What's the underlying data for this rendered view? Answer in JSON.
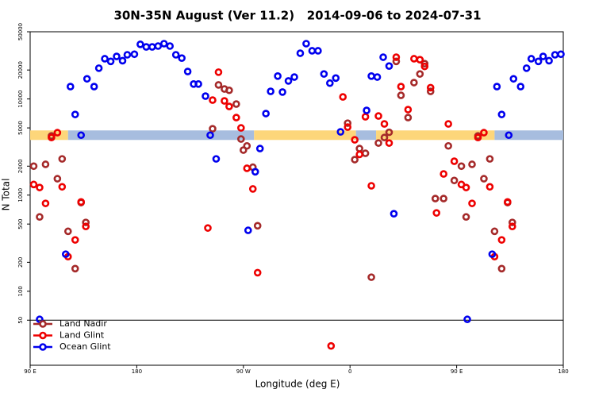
{
  "chart_data": {
    "type": "scatter",
    "title": "30N-35N August (Ver 11.2)   2014-09-06 to 2024-07-31",
    "x_label": "Longitude (deg E)",
    "y_label": "N Total",
    "log_y": true,
    "xlim": [
      90,
      540
    ],
    "ylim": [
      17,
      50000
    ],
    "xticks": [
      {
        "value": 90,
        "label": "90 E"
      },
      {
        "value": 180,
        "label": "180"
      },
      {
        "value": 270,
        "label": "90 W"
      },
      {
        "value": 360,
        "label": "0"
      },
      {
        "value": 450,
        "label": "90 E"
      },
      {
        "value": 540,
        "label": "180"
      }
    ],
    "yticks": [
      50,
      100,
      200,
      500,
      1000,
      2000,
      5000,
      10000,
      20000,
      50000
    ],
    "hline": 50,
    "legend": "lower left",
    "band": {
      "value": 4200,
      "segments": [
        {
          "range": [
            90,
            122
          ],
          "color": "#fdd67a"
        },
        {
          "range": [
            122,
            279
          ],
          "color": "#a7bddf"
        },
        {
          "range": [
            279,
            365
          ],
          "color": "#fdd67a"
        },
        {
          "range": [
            365,
            382
          ],
          "color": "#a7bddf"
        },
        {
          "range": [
            382,
            482
          ],
          "color": "#fdd67a"
        },
        {
          "range": [
            482,
            540
          ],
          "color": "#a7bddf"
        }
      ]
    },
    "series": [
      {
        "name": "Land Nadir",
        "color": "#a52a2a",
        "x": [
          93,
          98,
          103,
          108,
          113,
          117,
          122,
          128,
          133,
          137,
          244,
          249,
          254,
          258,
          264,
          268,
          270,
          273,
          278,
          282,
          358,
          364,
          368,
          373,
          378,
          384,
          389,
          393,
          399,
          403,
          409,
          414,
          419,
          423,
          428,
          432,
          439,
          443,
          448,
          454,
          458,
          463,
          468,
          473,
          478,
          482,
          488,
          493,
          497
        ],
        "values": [
          2000,
          593,
          2090,
          4130,
          1480,
          2380,
          420,
          172,
          836,
          520,
          4900,
          14000,
          12700,
          12300,
          8850,
          3830,
          2940,
          3250,
          1950,
          480,
          5600,
          2340,
          3050,
          2720,
          140,
          3480,
          3970,
          4500,
          24600,
          10900,
          6400,
          14800,
          18200,
          23300,
          12000,
          920,
          920,
          3250,
          1420,
          2000,
          593,
          2090,
          4130,
          1480,
          2380,
          420,
          172,
          836,
          520
        ]
      },
      {
        "name": "Land Glint",
        "color": "#ee0000",
        "x": [
          93,
          98,
          103,
          108,
          113,
          117,
          122,
          128,
          133,
          137,
          240,
          244,
          249,
          254,
          258,
          264,
          268,
          273,
          278,
          282,
          344,
          354,
          358,
          364,
          368,
          373,
          378,
          384,
          389,
          393,
          399,
          403,
          409,
          414,
          419,
          423,
          428,
          433,
          439,
          443,
          448,
          454,
          458,
          463,
          468,
          473,
          478,
          482,
          488,
          493,
          497
        ],
        "values": [
          1290,
          1200,
          820,
          3970,
          4460,
          1220,
          229,
          342,
          850,
          472,
          455,
          9730,
          19000,
          9550,
          8360,
          6400,
          5000,
          1900,
          1160,
          156,
          27,
          10500,
          5100,
          3760,
          2650,
          6530,
          1250,
          6650,
          5500,
          3480,
          27200,
          13450,
          7750,
          26200,
          25600,
          21800,
          13100,
          653,
          1660,
          5500,
          2250,
          1290,
          1200,
          820,
          3970,
          4460,
          1220,
          229,
          342,
          850,
          472
        ]
      },
      {
        "name": "Ocean Glint",
        "color": "#0000ee",
        "x": [
          98,
          120,
          124,
          128,
          133,
          138,
          144,
          148,
          153,
          158,
          163,
          168,
          172,
          178,
          183,
          188,
          193,
          198,
          203,
          208,
          213,
          218,
          223,
          228,
          232,
          238,
          242,
          247,
          274,
          280,
          284,
          289,
          293,
          299,
          303,
          308,
          313,
          318,
          323,
          328,
          333,
          338,
          343,
          348,
          352,
          374,
          378,
          383,
          388,
          393,
          397,
          459,
          480,
          484,
          488,
          494,
          498,
          504,
          509,
          513,
          519,
          523,
          528,
          533,
          538
        ],
        "values": [
          51,
          243,
          13450,
          6900,
          4200,
          16200,
          13450,
          20900,
          26200,
          24600,
          27700,
          25000,
          28800,
          29200,
          37000,
          34800,
          34800,
          35500,
          37600,
          35500,
          28800,
          26600,
          19300,
          14300,
          14300,
          10700,
          4200,
          2380,
          430,
          1750,
          3050,
          7050,
          12000,
          17300,
          11800,
          15400,
          16900,
          29900,
          37600,
          31700,
          31700,
          18200,
          14600,
          16500,
          4550,
          7600,
          17300,
          16900,
          27200,
          22000,
          640,
          51,
          243,
          13450,
          6900,
          4200,
          16200,
          13450,
          20900,
          26200,
          24600,
          27700,
          25000,
          28800,
          29200
        ]
      }
    ]
  }
}
